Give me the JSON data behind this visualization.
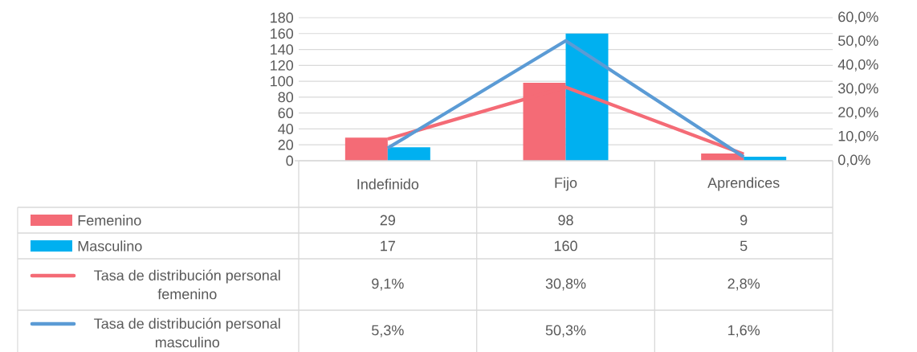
{
  "chart_data": {
    "type": "bar",
    "categories": [
      "Indefinido",
      "Fijo",
      "Aprendices"
    ],
    "series": [
      {
        "name": "Femenino",
        "color": "#f46b76",
        "values": [
          29,
          98,
          9
        ],
        "value_labels": [
          "29",
          "98",
          "9"
        ]
      },
      {
        "name": "Masculino",
        "color": "#00b0f0",
        "values": [
          17,
          160,
          5
        ],
        "value_labels": [
          "17",
          "160",
          "5"
        ]
      },
      {
        "name": "Tasa de distribución personal femenino",
        "type": "line",
        "axis": "y2",
        "color": "#f46b76",
        "values": [
          9.1,
          30.8,
          2.8
        ],
        "value_labels": [
          "9,1%",
          "30,8%",
          "2,8%"
        ]
      },
      {
        "name": "Tasa de distribución personal masculino",
        "type": "line",
        "axis": "y2",
        "color": "#5b9bd5",
        "values": [
          5.3,
          50.3,
          1.6
        ],
        "value_labels": [
          "5,3%",
          "50,3%",
          "1,6%"
        ]
      }
    ],
    "ylim": [
      0,
      180
    ],
    "yticks": [
      0,
      20,
      40,
      60,
      80,
      100,
      120,
      140,
      160,
      180
    ],
    "y2lim": [
      0,
      60
    ],
    "y2ticks": [
      {
        "value": 0,
        "label": "0,0%"
      },
      {
        "value": 10,
        "label": "10,0%"
      },
      {
        "value": 20,
        "label": "20,0%"
      },
      {
        "value": 30,
        "label": "30,0%"
      },
      {
        "value": 40,
        "label": "40,0%"
      },
      {
        "value": 50,
        "label": "50,0%"
      },
      {
        "value": 60,
        "label": "60,0%"
      }
    ],
    "grid": "y",
    "legend": "bottom",
    "marker": "none"
  }
}
